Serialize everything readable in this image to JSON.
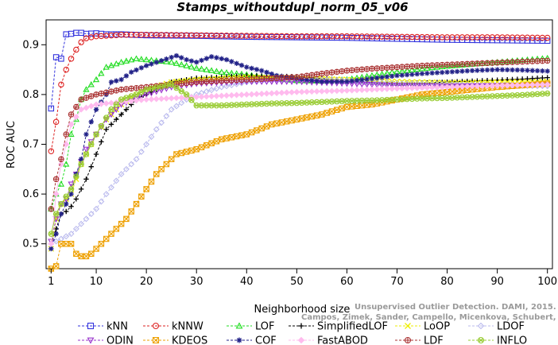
{
  "chart_data": {
    "type": "line",
    "title": "Stamps_withoutdupl_norm_05_v06",
    "xlabel": "Neighborhood size",
    "ylabel": "ROC AUC",
    "xlim": [
      0,
      101
    ],
    "ylim": [
      0.45,
      0.95
    ],
    "xticks": [
      1,
      10,
      20,
      30,
      40,
      50,
      60,
      70,
      80,
      90,
      100
    ],
    "yticks": [
      0.5,
      0.6,
      0.7,
      0.8,
      0.9
    ],
    "grid": false,
    "legend_position": "bottom",
    "watermark": [
      "Unsupervised Outlier Detection. DAMI, 2015.",
      "Campos, Zimek, Sander, Campello, Micenkova, Schubert, Assent, Houle"
    ],
    "series": [
      {
        "name": "kNN",
        "color": "#3333dd",
        "marker": "square",
        "points": [
          [
            1,
            0.772
          ],
          [
            2,
            0.875
          ],
          [
            3,
            0.872
          ],
          [
            4,
            0.921
          ],
          [
            5,
            0.922
          ],
          [
            6,
            0.924
          ],
          [
            7,
            0.924
          ],
          [
            8,
            0.922
          ],
          [
            10,
            0.923
          ],
          [
            12,
            0.921
          ],
          [
            15,
            0.921
          ],
          [
            20,
            0.919
          ],
          [
            30,
            0.918
          ],
          [
            40,
            0.916
          ],
          [
            50,
            0.915
          ],
          [
            60,
            0.914
          ],
          [
            70,
            0.912
          ],
          [
            80,
            0.91
          ],
          [
            90,
            0.909
          ],
          [
            100,
            0.908
          ]
        ]
      },
      {
        "name": "kNNW",
        "color": "#dd2222",
        "marker": "circle",
        "points": [
          [
            1,
            0.686
          ],
          [
            2,
            0.745
          ],
          [
            3,
            0.82
          ],
          [
            4,
            0.85
          ],
          [
            5,
            0.872
          ],
          [
            6,
            0.89
          ],
          [
            7,
            0.905
          ],
          [
            8,
            0.913
          ],
          [
            10,
            0.917
          ],
          [
            12,
            0.918
          ],
          [
            15,
            0.92
          ],
          [
            20,
            0.92
          ],
          [
            30,
            0.919
          ],
          [
            40,
            0.918
          ],
          [
            50,
            0.917
          ],
          [
            60,
            0.917
          ],
          [
            70,
            0.916
          ],
          [
            80,
            0.915
          ],
          [
            90,
            0.915
          ],
          [
            100,
            0.914
          ]
        ]
      },
      {
        "name": "LOF",
        "color": "#22dd22",
        "marker": "triangle-up",
        "points": [
          [
            1,
            0.57
          ],
          [
            2,
            0.6
          ],
          [
            3,
            0.62
          ],
          [
            4,
            0.66
          ],
          [
            5,
            0.72
          ],
          [
            6,
            0.75
          ],
          [
            7,
            0.79
          ],
          [
            8,
            0.81
          ],
          [
            10,
            0.83
          ],
          [
            12,
            0.855
          ],
          [
            15,
            0.865
          ],
          [
            18,
            0.872
          ],
          [
            20,
            0.87
          ],
          [
            25,
            0.865
          ],
          [
            30,
            0.853
          ],
          [
            35,
            0.845
          ],
          [
            40,
            0.84
          ],
          [
            45,
            0.833
          ],
          [
            50,
            0.828
          ],
          [
            55,
            0.827
          ],
          [
            60,
            0.83
          ],
          [
            65,
            0.838
          ],
          [
            70,
            0.846
          ],
          [
            75,
            0.852
          ],
          [
            80,
            0.857
          ],
          [
            85,
            0.861
          ],
          [
            90,
            0.865
          ],
          [
            95,
            0.869
          ],
          [
            100,
            0.873
          ]
        ]
      },
      {
        "name": "SimplifiedLOF",
        "color": "#000000",
        "marker": "plus",
        "points": [
          [
            1,
            0.5
          ],
          [
            2,
            0.53
          ],
          [
            3,
            0.56
          ],
          [
            4,
            0.565
          ],
          [
            5,
            0.575
          ],
          [
            6,
            0.59
          ],
          [
            8,
            0.63
          ],
          [
            10,
            0.68
          ],
          [
            12,
            0.73
          ],
          [
            15,
            0.76
          ],
          [
            18,
            0.79
          ],
          [
            20,
            0.8
          ],
          [
            25,
            0.825
          ],
          [
            30,
            0.833
          ],
          [
            35,
            0.835
          ],
          [
            40,
            0.838
          ],
          [
            45,
            0.837
          ],
          [
            50,
            0.836
          ],
          [
            55,
            0.832
          ],
          [
            60,
            0.828
          ],
          [
            65,
            0.825
          ],
          [
            70,
            0.823
          ],
          [
            75,
            0.823
          ],
          [
            80,
            0.825
          ],
          [
            85,
            0.827
          ],
          [
            90,
            0.829
          ],
          [
            95,
            0.831
          ],
          [
            100,
            0.834
          ]
        ]
      },
      {
        "name": "LoOP",
        "color": "#eeee00",
        "marker": "x",
        "points": [
          [
            1,
            0.49
          ],
          [
            2,
            0.55
          ],
          [
            3,
            0.58
          ],
          [
            5,
            0.6
          ],
          [
            7,
            0.66
          ],
          [
            10,
            0.72
          ],
          [
            12,
            0.75
          ],
          [
            15,
            0.78
          ],
          [
            18,
            0.8
          ],
          [
            20,
            0.81
          ],
          [
            25,
            0.825
          ],
          [
            30,
            0.83
          ],
          [
            40,
            0.835
          ],
          [
            50,
            0.833
          ],
          [
            60,
            0.83
          ],
          [
            70,
            0.826
          ],
          [
            80,
            0.824
          ],
          [
            90,
            0.825
          ],
          [
            100,
            0.826
          ]
        ]
      },
      {
        "name": "LDOF",
        "color": "#bbbbee",
        "marker": "diamond",
        "points": [
          [
            1,
            0.5
          ],
          [
            3,
            0.51
          ],
          [
            5,
            0.52
          ],
          [
            7,
            0.54
          ],
          [
            10,
            0.57
          ],
          [
            12,
            0.6
          ],
          [
            15,
            0.64
          ],
          [
            18,
            0.67
          ],
          [
            20,
            0.7
          ],
          [
            22,
            0.73
          ],
          [
            25,
            0.77
          ],
          [
            28,
            0.79
          ],
          [
            30,
            0.8
          ],
          [
            35,
            0.815
          ],
          [
            40,
            0.825
          ],
          [
            50,
            0.83
          ],
          [
            60,
            0.828
          ],
          [
            70,
            0.822
          ],
          [
            80,
            0.82
          ],
          [
            90,
            0.818
          ],
          [
            100,
            0.817
          ]
        ]
      },
      {
        "name": "ODIN",
        "color": "#9933cc",
        "marker": "triangle-down",
        "points": [
          [
            1,
            0.505
          ],
          [
            2,
            0.55
          ],
          [
            3,
            0.58
          ],
          [
            4,
            0.59
          ],
          [
            5,
            0.62
          ],
          [
            6,
            0.64
          ],
          [
            8,
            0.69
          ],
          [
            10,
            0.72
          ],
          [
            12,
            0.75
          ],
          [
            15,
            0.78
          ],
          [
            20,
            0.8
          ],
          [
            25,
            0.815
          ],
          [
            30,
            0.822
          ],
          [
            40,
            0.826
          ],
          [
            50,
            0.826
          ],
          [
            60,
            0.822
          ],
          [
            70,
            0.818
          ],
          [
            80,
            0.817
          ],
          [
            90,
            0.818
          ],
          [
            100,
            0.82
          ]
        ]
      },
      {
        "name": "KDEOS",
        "color": "#eea000",
        "marker": "square-x",
        "points": [
          [
            1,
            0.45
          ],
          [
            2,
            0.455
          ],
          [
            3,
            0.5
          ],
          [
            4,
            0.5
          ],
          [
            5,
            0.5
          ],
          [
            6,
            0.48
          ],
          [
            7,
            0.475
          ],
          [
            8,
            0.475
          ],
          [
            9,
            0.48
          ],
          [
            10,
            0.49
          ],
          [
            12,
            0.51
          ],
          [
            14,
            0.53
          ],
          [
            16,
            0.55
          ],
          [
            18,
            0.58
          ],
          [
            20,
            0.61
          ],
          [
            22,
            0.64
          ],
          [
            24,
            0.66
          ],
          [
            26,
            0.68
          ],
          [
            28,
            0.685
          ],
          [
            30,
            0.69
          ],
          [
            35,
            0.71
          ],
          [
            40,
            0.72
          ],
          [
            45,
            0.74
          ],
          [
            50,
            0.75
          ],
          [
            55,
            0.76
          ],
          [
            60,
            0.775
          ],
          [
            65,
            0.78
          ],
          [
            70,
            0.79
          ],
          [
            75,
            0.8
          ],
          [
            80,
            0.805
          ],
          [
            90,
            0.815
          ],
          [
            100,
            0.822
          ]
        ]
      },
      {
        "name": "COF",
        "color": "#222288",
        "marker": "asterisk",
        "points": [
          [
            1,
            0.49
          ],
          [
            2,
            0.52
          ],
          [
            3,
            0.56
          ],
          [
            4,
            0.58
          ],
          [
            5,
            0.6
          ],
          [
            6,
            0.64
          ],
          [
            7,
            0.67
          ],
          [
            8,
            0.72
          ],
          [
            10,
            0.77
          ],
          [
            12,
            0.8
          ],
          [
            13,
            0.825
          ],
          [
            15,
            0.83
          ],
          [
            17,
            0.845
          ],
          [
            20,
            0.858
          ],
          [
            23,
            0.868
          ],
          [
            26,
            0.878
          ],
          [
            28,
            0.87
          ],
          [
            30,
            0.865
          ],
          [
            33,
            0.876
          ],
          [
            36,
            0.87
          ],
          [
            40,
            0.855
          ],
          [
            43,
            0.848
          ],
          [
            46,
            0.838
          ],
          [
            50,
            0.832
          ],
          [
            55,
            0.826
          ],
          [
            60,
            0.826
          ],
          [
            65,
            0.832
          ],
          [
            70,
            0.838
          ],
          [
            75,
            0.842
          ],
          [
            80,
            0.845
          ],
          [
            85,
            0.848
          ],
          [
            90,
            0.85
          ],
          [
            95,
            0.849
          ],
          [
            100,
            0.847
          ]
        ]
      },
      {
        "name": "FastABOD",
        "color": "#ffbbee",
        "marker": "diamond-filled",
        "points": [
          [
            1,
            0.5
          ],
          [
            2,
            0.6
          ],
          [
            3,
            0.66
          ],
          [
            4,
            0.7
          ],
          [
            5,
            0.74
          ],
          [
            7,
            0.77
          ],
          [
            10,
            0.78
          ],
          [
            15,
            0.785
          ],
          [
            20,
            0.79
          ],
          [
            30,
            0.795
          ],
          [
            40,
            0.8
          ],
          [
            50,
            0.805
          ],
          [
            60,
            0.808
          ],
          [
            70,
            0.812
          ],
          [
            80,
            0.815
          ],
          [
            90,
            0.818
          ],
          [
            100,
            0.82
          ]
        ]
      },
      {
        "name": "LDF",
        "color": "#aa3333",
        "marker": "circle-plus",
        "points": [
          [
            1,
            0.57
          ],
          [
            2,
            0.63
          ],
          [
            3,
            0.67
          ],
          [
            4,
            0.72
          ],
          [
            5,
            0.76
          ],
          [
            7,
            0.79
          ],
          [
            10,
            0.8
          ],
          [
            15,
            0.81
          ],
          [
            20,
            0.815
          ],
          [
            25,
            0.82
          ],
          [
            30,
            0.825
          ],
          [
            40,
            0.83
          ],
          [
            50,
            0.835
          ],
          [
            55,
            0.842
          ],
          [
            60,
            0.848
          ],
          [
            65,
            0.852
          ],
          [
            70,
            0.855
          ],
          [
            75,
            0.858
          ],
          [
            80,
            0.86
          ],
          [
            85,
            0.862
          ],
          [
            90,
            0.864
          ],
          [
            95,
            0.866
          ],
          [
            100,
            0.868
          ]
        ]
      },
      {
        "name": "INFLO",
        "color": "#99cc33",
        "marker": "star-circle",
        "points": [
          [
            1,
            0.52
          ],
          [
            2,
            0.56
          ],
          [
            3,
            0.58
          ],
          [
            5,
            0.61
          ],
          [
            7,
            0.66
          ],
          [
            10,
            0.72
          ],
          [
            13,
            0.77
          ],
          [
            15,
            0.79
          ],
          [
            18,
            0.8
          ],
          [
            20,
            0.81
          ],
          [
            25,
            0.82
          ],
          [
            28,
            0.8
          ],
          [
            30,
            0.778
          ],
          [
            35,
            0.778
          ],
          [
            40,
            0.78
          ],
          [
            45,
            0.782
          ],
          [
            50,
            0.783
          ],
          [
            55,
            0.785
          ],
          [
            60,
            0.787
          ],
          [
            65,
            0.788
          ],
          [
            70,
            0.79
          ],
          [
            75,
            0.792
          ],
          [
            80,
            0.793
          ],
          [
            85,
            0.795
          ],
          [
            90,
            0.797
          ],
          [
            95,
            0.799
          ],
          [
            100,
            0.802
          ]
        ]
      }
    ],
    "legend_rows": [
      [
        "kNN",
        "kNNW",
        "LOF",
        "SimplifiedLOF",
        "LoOP",
        "LDOF"
      ],
      [
        "ODIN",
        "KDEOS",
        "COF",
        "FastABOD",
        "LDF",
        "INFLO"
      ]
    ]
  }
}
